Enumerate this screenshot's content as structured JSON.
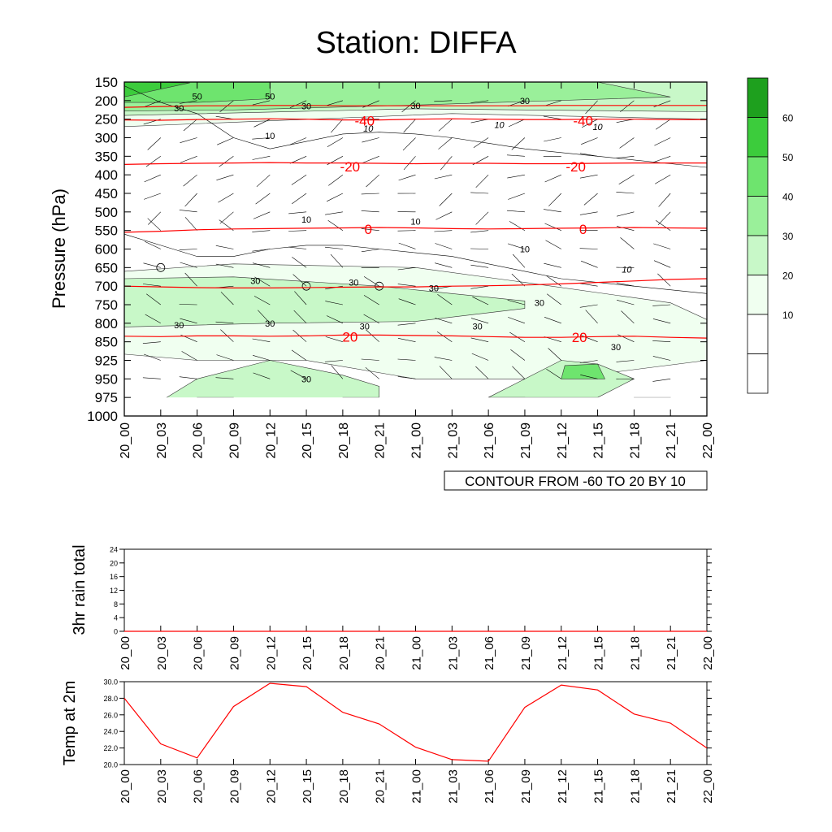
{
  "title": "Station: DIFFA",
  "time_labels": [
    "20_00",
    "20_03",
    "20_06",
    "20_09",
    "20_12",
    "20_15",
    "20_18",
    "20_21",
    "21_00",
    "21_03",
    "21_06",
    "21_09",
    "21_12",
    "21_15",
    "21_18",
    "21_21",
    "22_00"
  ],
  "colors": {
    "line": "#ff0000",
    "axis": "#000000",
    "contour": "#000000",
    "wind": "#000000"
  },
  "chart_data": [
    {
      "id": "cross-section",
      "type": "heatmap",
      "ylabel": "Pressure (hPa)",
      "pressure_levels": [
        150,
        200,
        250,
        300,
        350,
        400,
        450,
        500,
        550,
        600,
        650,
        700,
        750,
        800,
        850,
        925,
        950,
        975,
        1000
      ],
      "ylim": [
        150,
        1000
      ],
      "fill_colorbar": {
        "levels": [
          10,
          20,
          30,
          40,
          50,
          60
        ],
        "colors": [
          "#ffffff",
          "#ffffff",
          "#f0fff0",
          "#c8f8c8",
          "#9af09a",
          "#6ee46e",
          "#3ccc3c",
          "#1ea01e"
        ],
        "tick_labels": [
          "10",
          "20",
          "30",
          "40",
          "50",
          "60"
        ]
      },
      "fill_contour_labels": [
        "50",
        "50",
        "30",
        "30",
        "30",
        "30",
        "10",
        "10",
        "10",
        "10",
        "10",
        "10",
        "10",
        "10",
        "30",
        "30",
        "30",
        "30",
        "30",
        "30",
        "30",
        "30",
        "30",
        "30"
      ],
      "temperature_isotherm_labels": [
        "-40",
        "-40",
        "-20",
        "-20",
        "0",
        "0",
        "20",
        "20"
      ],
      "temperature_isotherms": [
        {
          "label": "-40",
          "pressure": [
            252,
            253,
            251,
            250,
            249,
            250,
            252,
            252,
            250,
            249,
            250,
            251,
            251,
            250,
            250,
            251,
            251
          ]
        },
        {
          "label": "-20",
          "pressure": [
            372,
            370,
            369,
            368,
            367,
            368,
            368,
            369,
            370,
            369,
            369,
            370,
            370,
            369,
            368,
            368,
            368
          ]
        },
        {
          "label": "0",
          "pressure": [
            555,
            552,
            548,
            546,
            545,
            544,
            543,
            542,
            543,
            545,
            546,
            545,
            544,
            543,
            542,
            543,
            544
          ]
        },
        {
          "label": "20",
          "pressure": [
            835,
            836,
            834,
            834,
            835,
            834,
            832,
            832,
            833,
            834,
            836,
            838,
            838,
            836,
            835,
            838,
            840
          ]
        },
        {
          "label": "",
          "pressure": [
            700,
            702,
            704,
            705,
            705,
            704,
            703,
            702,
            702,
            700,
            699,
            697,
            694,
            690,
            686,
            682,
            680
          ]
        },
        {
          "label": "",
          "pressure": [
            218,
            216,
            214,
            214,
            213,
            213,
            214,
            214,
            214,
            214,
            214,
            214,
            213,
            213,
            213,
            213,
            213
          ]
        }
      ],
      "annotation": "CONTOUR FROM -60 TO 20 BY 10"
    },
    {
      "id": "rain",
      "type": "line",
      "ylabel": "3hr rain total",
      "ylim": [
        0,
        24
      ],
      "yticks": [
        "0",
        "4",
        "8",
        "12",
        "16",
        "20",
        "24"
      ],
      "values": [
        0,
        0,
        0,
        0,
        0,
        0,
        0,
        0,
        0,
        0,
        0,
        0,
        0,
        0,
        0,
        0,
        0
      ]
    },
    {
      "id": "temp",
      "type": "line",
      "ylabel": "Temp at 2m",
      "ylim": [
        20.0,
        30.0
      ],
      "yticks": [
        "20.0",
        "22.0",
        "24.0",
        "26.0",
        "28.0",
        "30.0"
      ],
      "values": [
        28.0,
        22.5,
        20.8,
        27.0,
        29.8,
        29.4,
        26.3,
        24.9,
        22.1,
        20.6,
        20.4,
        26.9,
        29.6,
        29.0,
        26.1,
        25.0,
        22.0
      ]
    }
  ]
}
